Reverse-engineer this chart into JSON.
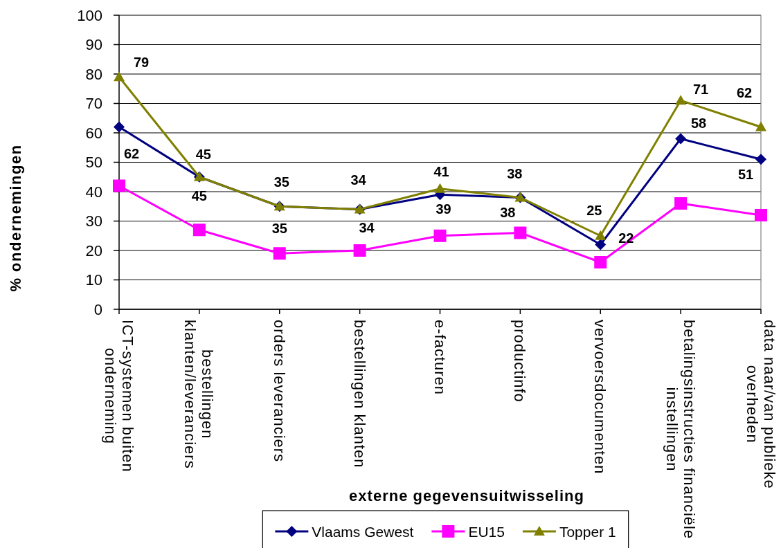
{
  "chart_data": {
    "type": "line",
    "xlabel": "externe gegevensuitwisseling",
    "ylabel": "% ondernemingen",
    "categories": [
      "ICT-systemen buiten onderneming",
      "bestellingen klanten/leveranciers",
      "orders leveranciers",
      "bestellingen klanten",
      "e-facturen",
      "productinfo",
      "vervoersdocumenten",
      "betalingsinstructies financiële instellingen",
      "data naar/van publieke overheden"
    ],
    "series": [
      {
        "name": "Vlaams Gewest",
        "color": "#000080",
        "marker": "diamond",
        "values": [
          62,
          45,
          35,
          34,
          39,
          38,
          22,
          58,
          51
        ],
        "value_labels": [
          "62",
          "45",
          "35",
          "34",
          "39",
          "38",
          "22",
          "58",
          "51"
        ]
      },
      {
        "name": "EU15",
        "color": "#ff00ff",
        "marker": "square",
        "values": [
          42,
          27,
          19,
          20,
          25,
          26,
          16,
          36,
          32
        ]
      },
      {
        "name": "Topper 1",
        "color": "#808000",
        "marker": "triangle",
        "values": [
          79,
          45,
          35,
          34,
          41,
          38,
          25,
          71,
          62
        ],
        "value_labels": [
          "79",
          "45",
          "35",
          "34",
          "41",
          "38",
          "25",
          "71",
          "62"
        ]
      }
    ],
    "ylim": [
      0,
      100
    ],
    "yticks": [
      0,
      10,
      20,
      30,
      40,
      50,
      60,
      70,
      80,
      90,
      100
    ],
    "grid": "y",
    "legend": "bottom"
  }
}
